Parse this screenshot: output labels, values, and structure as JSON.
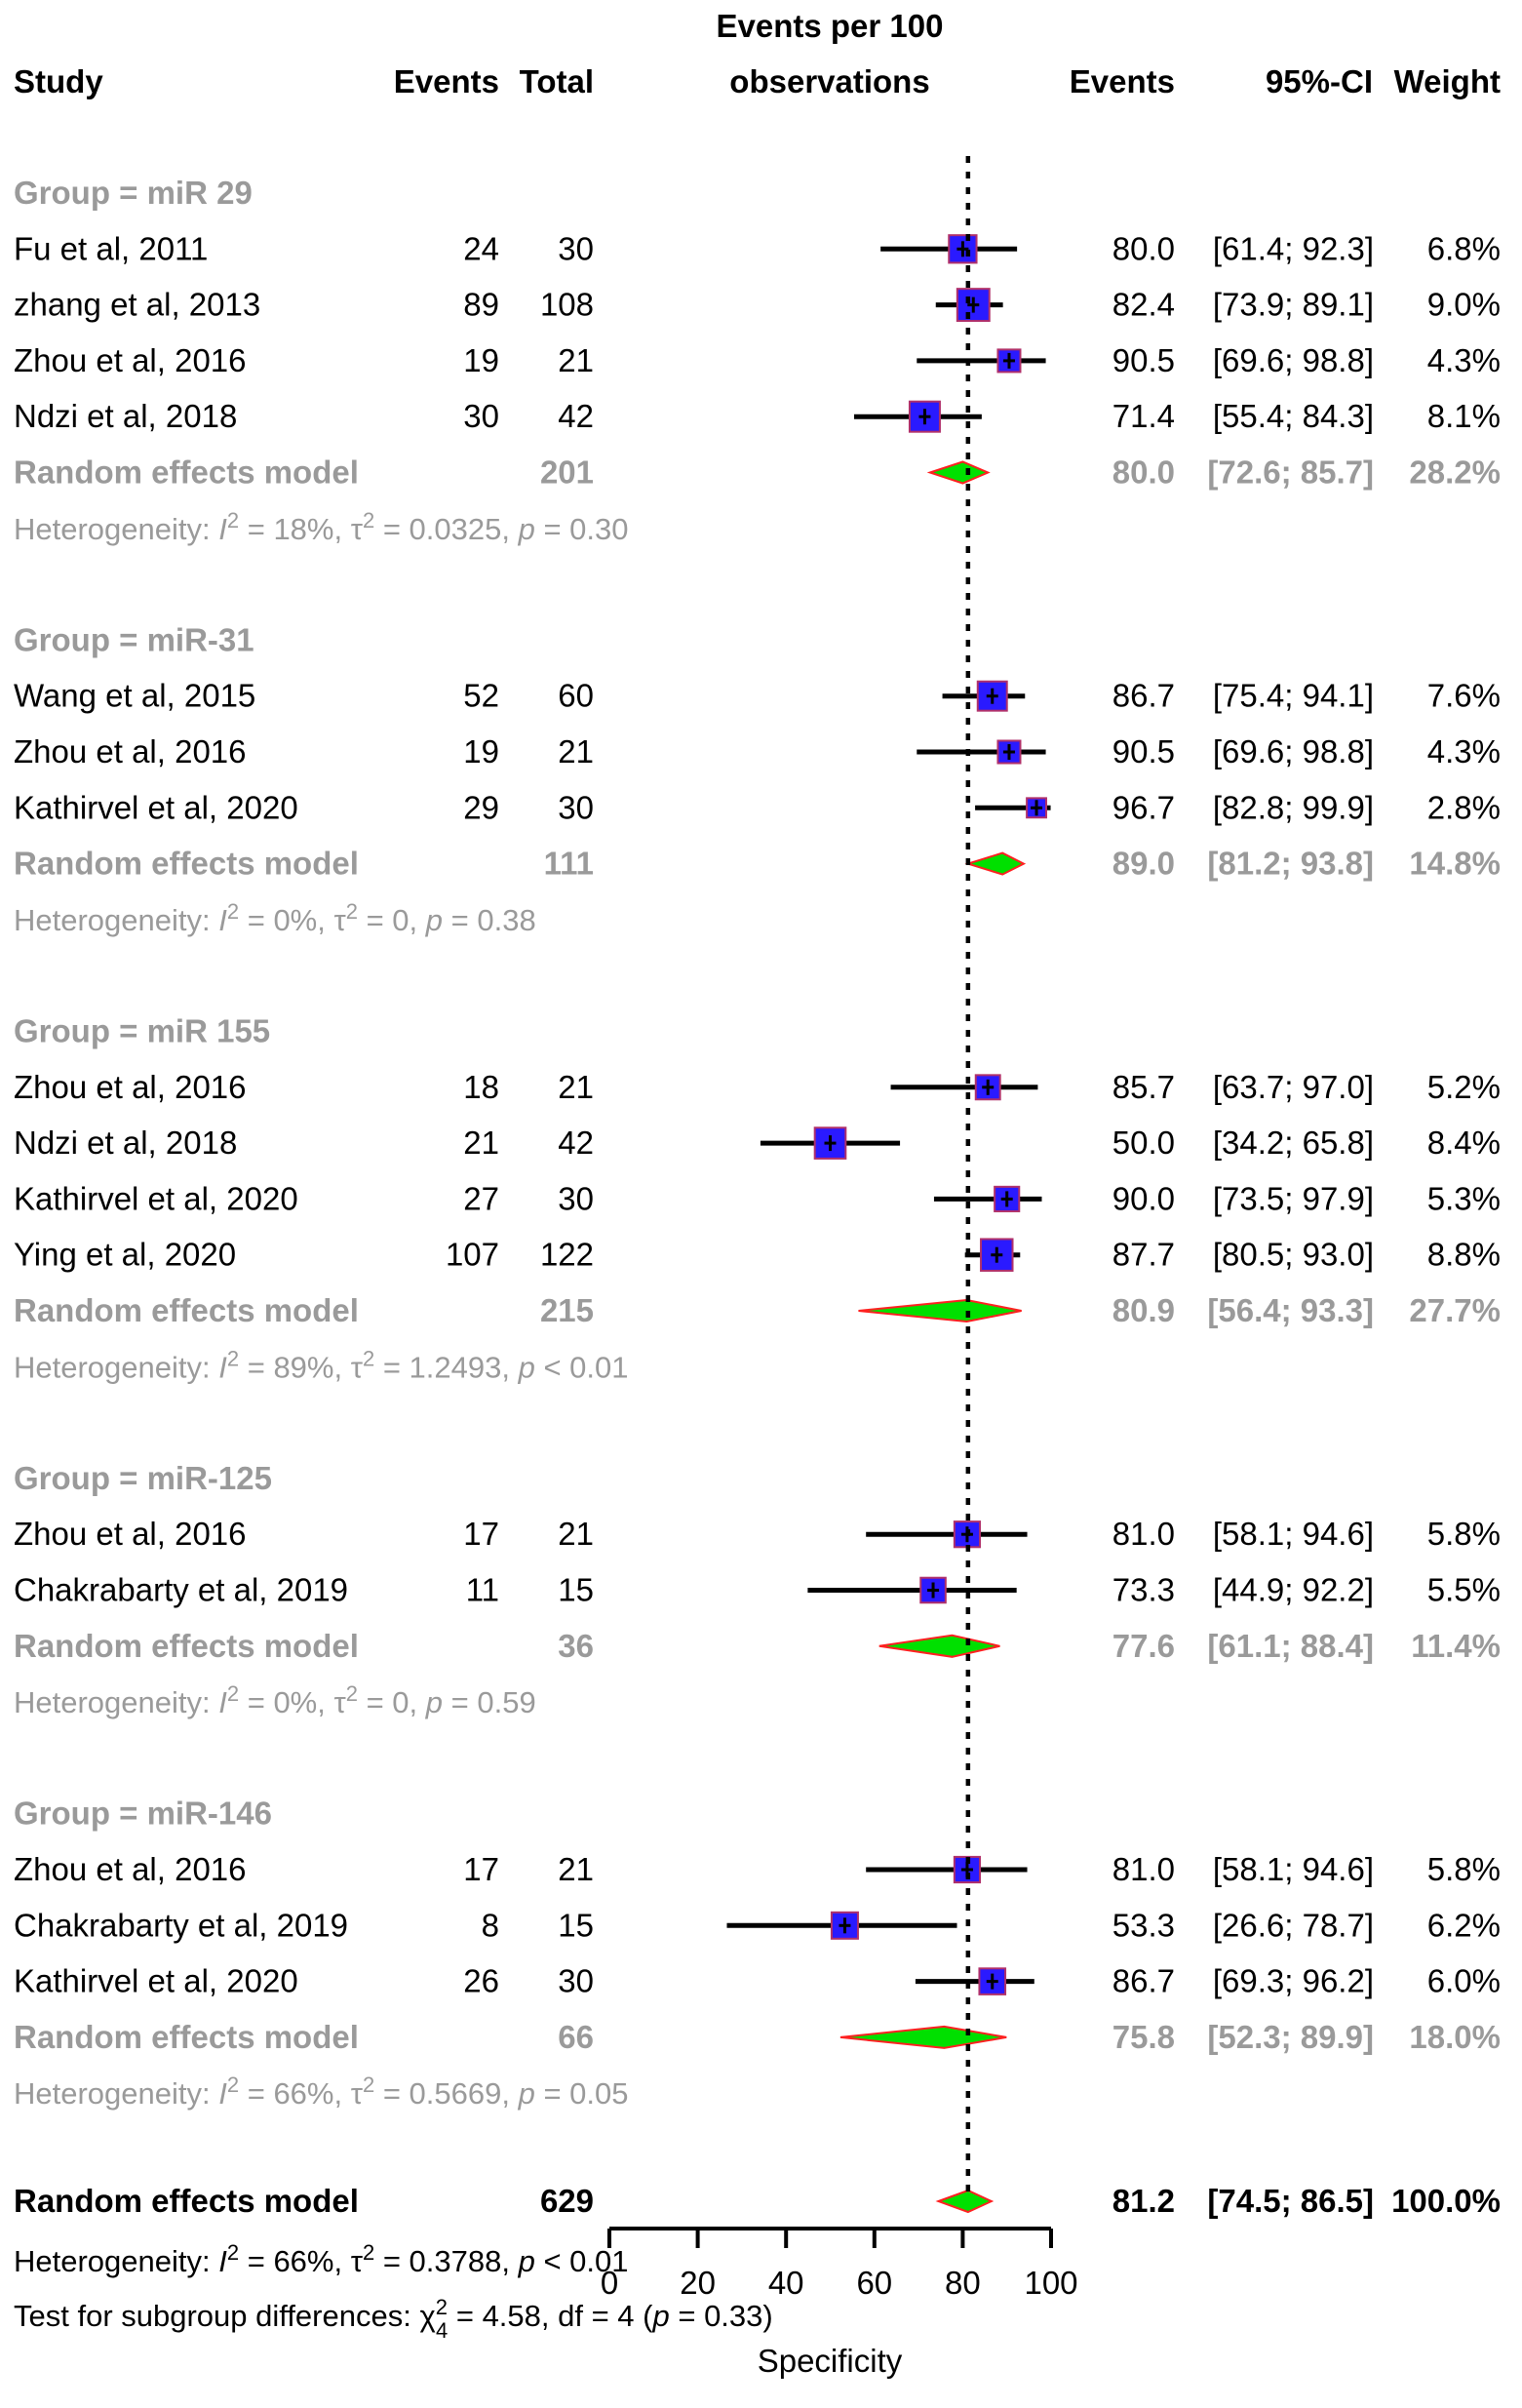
{
  "chart_data": {
    "type": "forest",
    "header": {
      "study": "Study",
      "events": "Events",
      "total": "Total",
      "axis_title_line1": "Events per 100",
      "axis_title_line2": "observations",
      "events_col": "Events",
      "ci": "95%-CI",
      "weight": "Weight"
    },
    "xlim": [
      0,
      100
    ],
    "ticks": [
      0,
      20,
      40,
      60,
      80,
      100
    ],
    "xlabel": "Specificity",
    "reference_line": 81.2,
    "groups": [
      {
        "label": "Group = miR 29",
        "studies": [
          {
            "study": "Fu et al, 2011",
            "events": "24",
            "total": "30",
            "est": "80.0",
            "ci": "[61.4;  92.3]",
            "weight": "6.8%",
            "value": 80.0,
            "lo": 61.4,
            "hi": 92.3,
            "w": 6.8
          },
          {
            "study": "zhang et al, 2013",
            "events": "89",
            "total": "108",
            "est": "82.4",
            "ci": "[73.9;  89.1]",
            "weight": "9.0%",
            "value": 82.4,
            "lo": 73.9,
            "hi": 89.1,
            "w": 9.0
          },
          {
            "study": "Zhou et al, 2016",
            "events": "19",
            "total": "21",
            "est": "90.5",
            "ci": "[69.6;  98.8]",
            "weight": "4.3%",
            "value": 90.5,
            "lo": 69.6,
            "hi": 98.8,
            "w": 4.3
          },
          {
            "study": "Ndzi et al, 2018",
            "events": "30",
            "total": "42",
            "est": "71.4",
            "ci": "[55.4;  84.3]",
            "weight": "8.1%",
            "value": 71.4,
            "lo": 55.4,
            "hi": 84.3,
            "w": 8.1
          }
        ],
        "model": {
          "label": "Random effects model",
          "total": "201",
          "est": "80.0",
          "ci": "[72.6;  85.7]",
          "weight": "28.2%",
          "value": 80.0,
          "lo": 72.6,
          "hi": 85.7
        },
        "heterogeneity": {
          "prefix": "Heterogeneity: ",
          "i2": "= 18%, ",
          "tau2": "= 0.0325, ",
          "p": "= 0.30"
        }
      },
      {
        "label": "Group = miR-31",
        "studies": [
          {
            "study": "Wang et al, 2015",
            "events": "52",
            "total": "60",
            "est": "86.7",
            "ci": "[75.4;  94.1]",
            "weight": "7.6%",
            "value": 86.7,
            "lo": 75.4,
            "hi": 94.1,
            "w": 7.6
          },
          {
            "study": "Zhou et al, 2016",
            "events": "19",
            "total": "21",
            "est": "90.5",
            "ci": "[69.6;  98.8]",
            "weight": "4.3%",
            "value": 90.5,
            "lo": 69.6,
            "hi": 98.8,
            "w": 4.3
          },
          {
            "study": "Kathirvel et al, 2020",
            "events": "29",
            "total": "30",
            "est": "96.7",
            "ci": "[82.8;  99.9]",
            "weight": "2.8%",
            "value": 96.7,
            "lo": 82.8,
            "hi": 99.9,
            "w": 2.8
          }
        ],
        "model": {
          "label": "Random effects model",
          "total": "111",
          "est": "89.0",
          "ci": "[81.2;  93.8]",
          "weight": "14.8%",
          "value": 89.0,
          "lo": 81.2,
          "hi": 93.8
        },
        "heterogeneity": {
          "prefix": "Heterogeneity: ",
          "i2": "= 0%, ",
          "tau2": "= 0, ",
          "p": "= 0.38"
        }
      },
      {
        "label": "Group = miR 155",
        "studies": [
          {
            "study": "Zhou et al, 2016",
            "events": "18",
            "total": "21",
            "est": "85.7",
            "ci": "[63.7;  97.0]",
            "weight": "5.2%",
            "value": 85.7,
            "lo": 63.7,
            "hi": 97.0,
            "w": 5.2
          },
          {
            "study": "Ndzi et al, 2018",
            "events": "21",
            "total": "42",
            "est": "50.0",
            "ci": "[34.2;  65.8]",
            "weight": "8.4%",
            "value": 50.0,
            "lo": 34.2,
            "hi": 65.8,
            "w": 8.4
          },
          {
            "study": "Kathirvel et al, 2020",
            "events": "27",
            "total": "30",
            "est": "90.0",
            "ci": "[73.5;  97.9]",
            "weight": "5.3%",
            "value": 90.0,
            "lo": 73.5,
            "hi": 97.9,
            "w": 5.3
          },
          {
            "study": "Ying et al, 2020",
            "events": "107",
            "total": "122",
            "est": "87.7",
            "ci": "[80.5;  93.0]",
            "weight": "8.8%",
            "value": 87.7,
            "lo": 80.5,
            "hi": 93.0,
            "w": 8.8
          }
        ],
        "model": {
          "label": "Random effects model",
          "total": "215",
          "est": "80.9",
          "ci": "[56.4;  93.3]",
          "weight": "27.7%",
          "value": 80.9,
          "lo": 56.4,
          "hi": 93.3
        },
        "heterogeneity": {
          "prefix": "Heterogeneity: ",
          "i2": "= 89%, ",
          "tau2": "= 1.2493, ",
          "p": "< 0.01"
        }
      },
      {
        "label": "Group = miR-125",
        "studies": [
          {
            "study": "Zhou et al, 2016",
            "events": "17",
            "total": "21",
            "est": "81.0",
            "ci": "[58.1;  94.6]",
            "weight": "5.8%",
            "value": 81.0,
            "lo": 58.1,
            "hi": 94.6,
            "w": 5.8
          },
          {
            "study": "Chakrabarty et al, 2019",
            "events": "11",
            "total": "15",
            "est": "73.3",
            "ci": "[44.9;  92.2]",
            "weight": "5.5%",
            "value": 73.3,
            "lo": 44.9,
            "hi": 92.2,
            "w": 5.5
          }
        ],
        "model": {
          "label": "Random effects model",
          "total": "36",
          "est": "77.6",
          "ci": "[61.1;  88.4]",
          "weight": "11.4%",
          "value": 77.6,
          "lo": 61.1,
          "hi": 88.4
        },
        "heterogeneity": {
          "prefix": "Heterogeneity: ",
          "i2": "= 0%, ",
          "tau2": "= 0, ",
          "p": "= 0.59"
        }
      },
      {
        "label": "Group = miR-146",
        "studies": [
          {
            "study": "Zhou et al, 2016",
            "events": "17",
            "total": "21",
            "est": "81.0",
            "ci": "[58.1;  94.6]",
            "weight": "5.8%",
            "value": 81.0,
            "lo": 58.1,
            "hi": 94.6,
            "w": 5.8
          },
          {
            "study": "Chakrabarty et al, 2019",
            "events": "8",
            "total": "15",
            "est": "53.3",
            "ci": "[26.6;  78.7]",
            "weight": "6.2%",
            "value": 53.3,
            "lo": 26.6,
            "hi": 78.7,
            "w": 6.2
          },
          {
            "study": "Kathirvel et al, 2020",
            "events": "26",
            "total": "30",
            "est": "86.7",
            "ci": "[69.3;  96.2]",
            "weight": "6.0%",
            "value": 86.7,
            "lo": 69.3,
            "hi": 96.2,
            "w": 6.0
          }
        ],
        "model": {
          "label": "Random effects model",
          "total": "66",
          "est": "75.8",
          "ci": "[52.3;  89.9]",
          "weight": "18.0%",
          "value": 75.8,
          "lo": 52.3,
          "hi": 89.9
        },
        "heterogeneity": {
          "prefix": "Heterogeneity: ",
          "i2": "= 66%, ",
          "tau2": "= 0.5669, ",
          "p": "= 0.05"
        }
      }
    ],
    "overall": {
      "label": "Random effects model",
      "total": "629",
      "est": "81.2",
      "ci": "[74.5;  86.5]",
      "weight": "100.0%",
      "value": 81.2,
      "lo": 74.5,
      "hi": 86.5,
      "heterogeneity": {
        "prefix": "Heterogeneity: ",
        "i2": "= 66%, ",
        "tau2": "= 0.3788, ",
        "p": "< 0.01"
      },
      "subgroup_test": {
        "prefix": "Test for subgroup differences: ",
        "chi": "= 4.58, df = 4 (",
        "p": "= 0.33)",
        "df_sub": "4"
      }
    },
    "colors": {
      "square_fill": "#2a1aff",
      "square_border": "#b0306a",
      "diamond_fill": "#00e000",
      "diamond_border": "#ff2020",
      "grey_text": "#9a9a9a"
    }
  }
}
